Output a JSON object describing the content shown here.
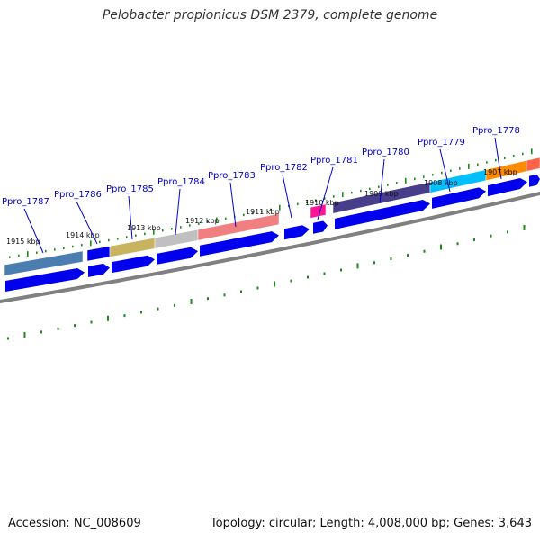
{
  "title": "Pelobacter propionicus DSM 2379, complete genome",
  "footer": {
    "accession": "Accession: NC_008609",
    "summary": "Topology: circular; Length: 4,008,000 bp; Genes: 3,643"
  },
  "colors": {
    "backbone": "#808080",
    "cds_arrow": "#0000ee",
    "tick": "#1e8a1e",
    "gene_label": "#0000cc",
    "label_line": "#0000cc"
  },
  "gene_labels": [
    "Ppro_1787",
    "Ppro_1786",
    "Ppro_1785",
    "Ppro_1784",
    "Ppro_1783",
    "Ppro_1782",
    "Ppro_1781",
    "Ppro_1780",
    "Ppro_1779",
    "Ppro_1778"
  ],
  "kbp_labels": [
    "1915 kbp",
    "1914 kbp",
    "1913 kbp",
    "1912 kbp",
    "1911 kbp",
    "1910 kbp",
    "1909 kbp",
    "1908 kbp",
    "1907 kbp"
  ],
  "feature_colors": [
    "#4a7eb0",
    "#0000ee",
    "#c8b460",
    "#c0c0c0",
    "#f08080",
    "#0000ee",
    "#ff1493",
    "#483d8b",
    "#00bfff",
    "#ff8c00",
    "#ff6347"
  ]
}
